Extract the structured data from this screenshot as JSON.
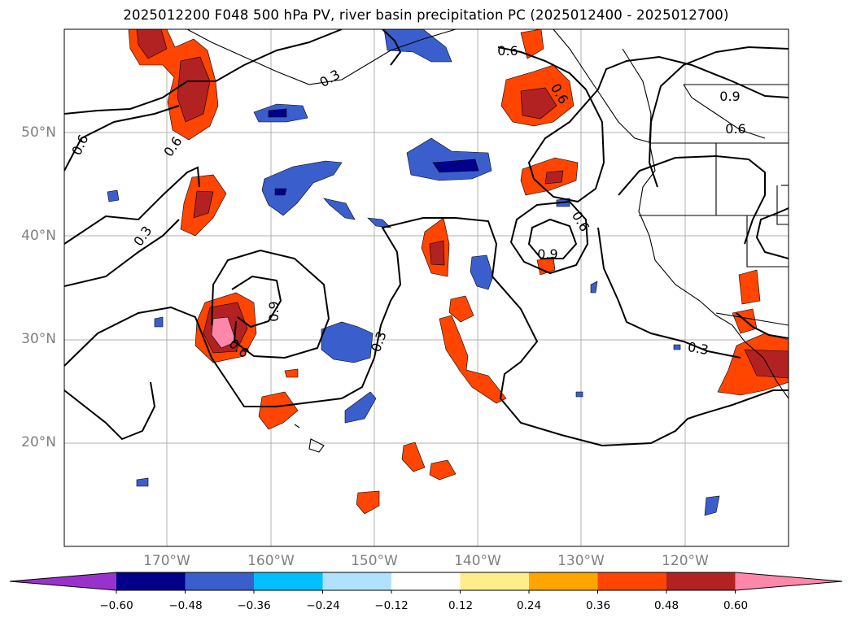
{
  "title": "2025012200 F048 500 hPa PV, river basin precipitation PC (2025012400 - 2025012700)",
  "map": {
    "lon_range": [
      -180,
      -110
    ],
    "lat_range": [
      10,
      60
    ],
    "lat_labels": [
      "20°N",
      "30°N",
      "40°N",
      "50°N"
    ],
    "lon_labels": [
      "170°W",
      "160°W",
      "150°W",
      "140°W",
      "130°W",
      "120°W"
    ],
    "grid": true,
    "pv_contour_labels": [
      "0.3",
      "0.3",
      "0.3",
      "0.3",
      "0.6",
      "0.6",
      "0.6",
      "0.6",
      "0.6",
      "0.6",
      "0.6",
      "0.9",
      "0.9",
      "0.9"
    ]
  },
  "colorbar": {
    "ticks": [
      "−0.60",
      "−0.48",
      "−0.36",
      "−0.24",
      "−0.12",
      "0.12",
      "0.24",
      "0.36",
      "0.48",
      "0.60"
    ],
    "colors": [
      "#9932cc",
      "#00008b",
      "#3a5fcd",
      "#00bfff",
      "#b0e2ff",
      "#ffffff",
      "#ffec8b",
      "#ffa500",
      "#ff4500",
      "#b22222",
      "#ff88aa"
    ],
    "extend": "both"
  },
  "grid_color": "#b0b0b0"
}
